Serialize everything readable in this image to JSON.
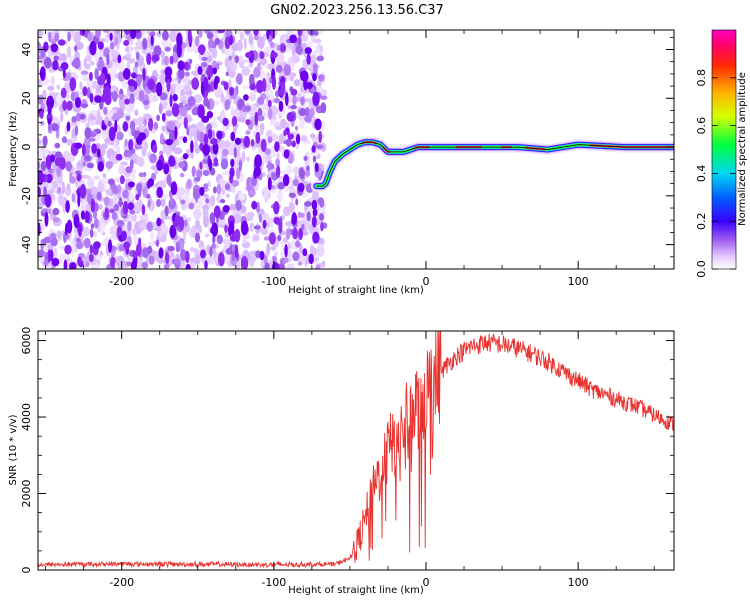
{
  "chart_data": [
    {
      "type": "heatmap",
      "title": "GN02.2023.256.13.56.C37",
      "xlabel": "Height of straight line (km)",
      "ylabel": "Frequency (Hz)",
      "xlim": [
        -255,
        163
      ],
      "ylim": [
        -50,
        48
      ],
      "xticks": [
        -200,
        -100,
        0,
        100
      ],
      "xtick_labels": [
        "-200",
        "-100",
        "0",
        "100"
      ],
      "yticks": [
        -40,
        -20,
        0,
        20,
        40
      ],
      "ytick_labels": [
        "-40",
        "-20",
        "0",
        "20",
        "40"
      ],
      "noise_region_x": [
        -255,
        -67
      ],
      "ridge_frequency": {
        "x": [
          -72,
          -68,
          -66,
          -63,
          -60,
          -55,
          -50,
          -45,
          -40,
          -35,
          -30,
          -25,
          -20,
          -15,
          -10,
          -5,
          0,
          20,
          40,
          60,
          80,
          100,
          130,
          163
        ],
        "y": [
          -16,
          -16,
          -15,
          -10,
          -6,
          -3,
          -1,
          1,
          2,
          2,
          1,
          -2,
          -2,
          -2,
          -1,
          0,
          0,
          0,
          0,
          0,
          -1,
          1,
          0,
          0
        ]
      },
      "colorbar": {
        "label": "Normalized spectral amplitude",
        "range": [
          0,
          1
        ],
        "ticks": [
          0.0,
          0.2,
          0.4,
          0.6,
          0.8
        ],
        "tick_labels": [
          "0.0",
          "0.2",
          "0.4",
          "0.6",
          "0.8"
        ]
      },
      "grid": false
    },
    {
      "type": "line",
      "xlabel": "Height of straight line (km)",
      "ylabel": "SNR (10 * v/v)",
      "xlim": [
        -255,
        163
      ],
      "ylim": [
        0,
        6250
      ],
      "xticks": [
        -200,
        -100,
        0,
        100
      ],
      "xtick_labels": [
        "-200",
        "-100",
        "0",
        "100"
      ],
      "yticks": [
        0,
        2000,
        4000,
        6000
      ],
      "ytick_labels": [
        "0",
        "2000",
        "4000",
        "6000"
      ],
      "color": "#e8322f",
      "series": [
        {
          "x": [
            -255,
            -200,
            -150,
            -100,
            -60,
            -50,
            -45,
            -40,
            -35,
            -30,
            -25,
            -20,
            -15,
            -10,
            -5,
            0,
            10,
            20,
            30,
            40,
            50,
            60,
            70,
            80,
            90,
            100,
            110,
            120,
            130,
            140,
            150,
            163
          ],
          "y": [
            140,
            160,
            150,
            140,
            150,
            300,
            700,
            1300,
            2000,
            2600,
            3100,
            3400,
            3700,
            4000,
            4350,
            4650,
            5200,
            5600,
            5850,
            5950,
            5900,
            5800,
            5650,
            5450,
            5200,
            4950,
            4700,
            4550,
            4400,
            4250,
            4050,
            3800
          ]
        }
      ],
      "grid": false
    }
  ]
}
